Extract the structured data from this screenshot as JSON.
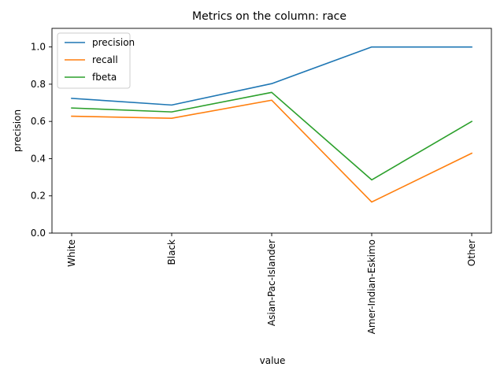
{
  "chart_data": {
    "type": "line",
    "title": "Metrics on the column: race",
    "xlabel": "value",
    "ylabel": "precision",
    "categories": [
      "White",
      "Black",
      "Asian-Pac-Islander",
      "Amer-Indian-Eskimo",
      "Other"
    ],
    "ylim": [
      0,
      1.1
    ],
    "yticks": [
      "0.0",
      "0.2",
      "0.4",
      "0.6",
      "0.8",
      "1.0"
    ],
    "grid": false,
    "legend_position": "top-left",
    "series": [
      {
        "name": "precision",
        "color": "#1f77b4",
        "values": [
          0.724,
          0.688,
          0.803,
          1.0,
          1.0
        ]
      },
      {
        "name": "recall",
        "color": "#ff7f0e",
        "values": [
          0.628,
          0.617,
          0.714,
          0.167,
          0.429
        ]
      },
      {
        "name": "fbeta",
        "color": "#2ca02c",
        "values": [
          0.672,
          0.651,
          0.756,
          0.286,
          0.6
        ]
      }
    ]
  }
}
